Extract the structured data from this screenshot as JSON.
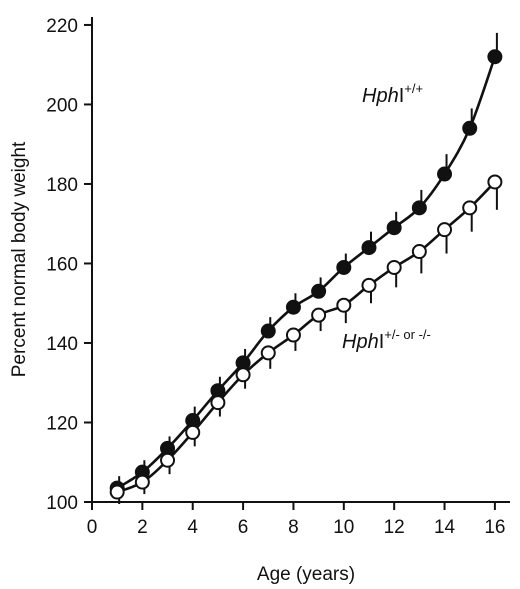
{
  "chart_data": {
    "type": "line",
    "title": "",
    "xlabel": "Age (years)",
    "ylabel": "Percent normal body weight",
    "xlim": [
      0,
      16.6
    ],
    "ylim": [
      100,
      222
    ],
    "xticks": [
      "0",
      "2",
      "4",
      "6",
      "8",
      "10",
      "12",
      "14",
      "16"
    ],
    "yticks": [
      "100",
      "120",
      "140",
      "160",
      "180",
      "200",
      "220"
    ],
    "grid": false,
    "legend": "none",
    "series": [
      {
        "name": "HphI+/+",
        "label_main": "Hph",
        "label_suffix": "I",
        "label_sup": "+/+",
        "marker": "filled-circle",
        "x": [
          1,
          2,
          3,
          4,
          5,
          6,
          7,
          8,
          9,
          10,
          11,
          12,
          13,
          14,
          15,
          16
        ],
        "y": [
          103.5,
          107.5,
          113.5,
          120.5,
          128,
          135,
          143,
          149,
          153,
          159,
          164,
          169,
          174,
          182.5,
          194,
          212
        ],
        "err": [
          3,
          3,
          3,
          3.5,
          3.5,
          3.5,
          3.5,
          3.5,
          3.5,
          3.5,
          4,
          4,
          4.5,
          5,
          5,
          6
        ]
      },
      {
        "name": "HphI+/- or -/-",
        "label_main": "Hph",
        "label_suffix": "I",
        "label_sup": "+/- or -/-",
        "marker": "open-circle",
        "x": [
          1,
          2,
          3,
          4,
          5,
          6,
          7,
          8,
          9,
          10,
          11,
          12,
          13,
          14,
          15,
          16
        ],
        "y": [
          102.5,
          105,
          110.5,
          117.5,
          125,
          132,
          137.5,
          142,
          147,
          149.5,
          154.5,
          159,
          163,
          168.5,
          174,
          180.5
        ],
        "err": [
          3,
          3,
          3.5,
          3.5,
          3.5,
          3.5,
          4,
          4,
          4,
          4.5,
          4.5,
          5,
          5.5,
          6,
          6,
          7
        ]
      }
    ]
  }
}
